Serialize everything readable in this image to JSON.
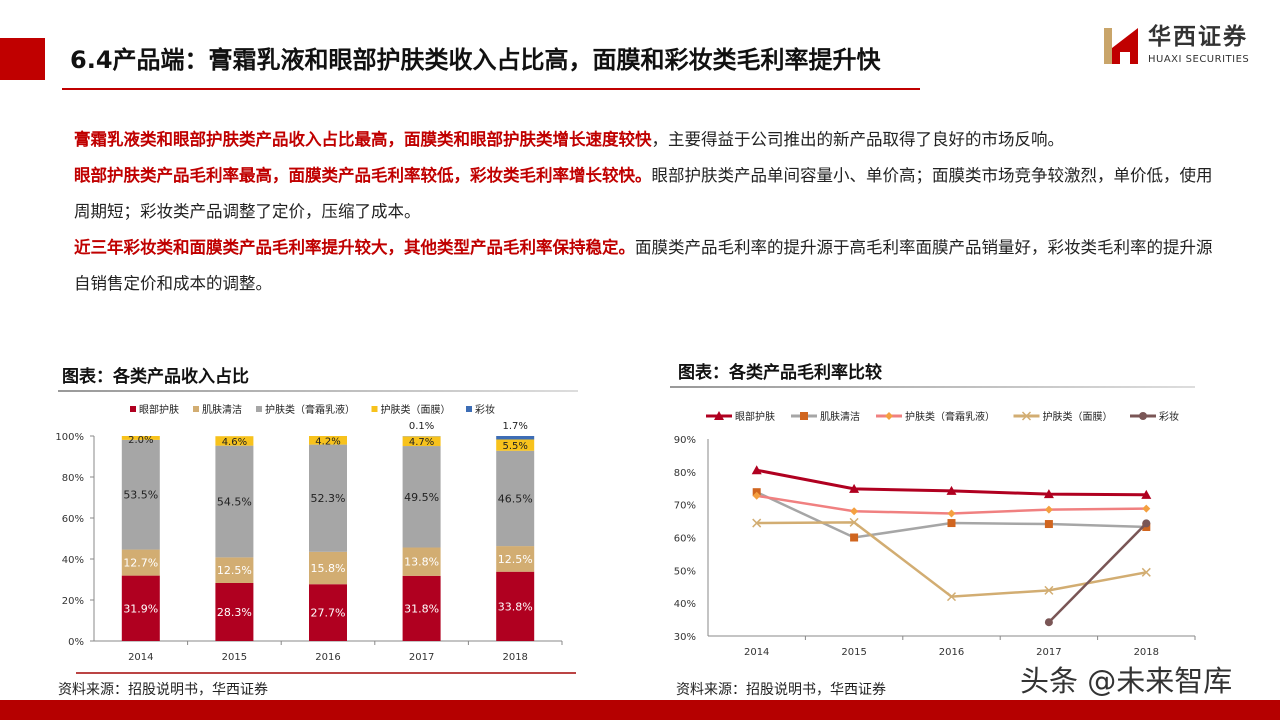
{
  "header": {
    "title": "6.4产品端：膏霜乳液和眼部护肤类收入占比高，面膜和彩妆类毛利率提升快",
    "logo_cn": "华西证券",
    "logo_en": "HUAXI SECURITIES",
    "accent": "#c00000"
  },
  "paragraphs": [
    {
      "bold": "膏霜乳液类和眼部护肤类产品收入占比最高，面膜类和眼部护肤类增长速度较快",
      "text": "，主要得益于公司推出的新产品取得了良好的市场反响。"
    },
    {
      "bold": "眼部护肤类产品毛利率最高，面膜类产品毛利率较低，彩妆类毛利率增长较快。",
      "text": "眼部护肤类产品单间容量小、单价高；面膜类市场竞争较激烈，单价低，使用周期短；彩妆类产品调整了定价，压缩了成本。"
    },
    {
      "bold": "近三年彩妆类和面膜类产品毛利率提升较大，其他类型产品毛利率保持稳定。",
      "text": "面膜类产品毛利率的提升源于高毛利率面膜产品销量好，彩妆类毛利率的提升源自销售定价和成本的调整。"
    }
  ],
  "chart_data": [
    {
      "type": "bar",
      "stacked": true,
      "title": "图表：各类产品收入占比",
      "categories": [
        "2014",
        "2015",
        "2016",
        "2017",
        "2018"
      ],
      "yticks": [
        "0%",
        "20%",
        "40%",
        "60%",
        "80%",
        "100%"
      ],
      "ylim": [
        0,
        100
      ],
      "legend": "top",
      "series": [
        {
          "name": "眼部护肤",
          "color": "#b00020",
          "values": [
            31.9,
            28.3,
            27.7,
            31.8,
            33.8
          ],
          "labels": [
            "31.9%",
            "28.3%",
            "27.7%",
            "31.8%",
            "33.8%"
          ]
        },
        {
          "name": "肌肤清洁",
          "color": "#d2ad72",
          "values": [
            12.7,
            12.5,
            15.8,
            13.8,
            12.5
          ],
          "labels": [
            "12.7%",
            "12.5%",
            "15.8%",
            "13.8%",
            "12.5%"
          ]
        },
        {
          "name": "护肤类（膏霜乳液）",
          "color": "#a6a6a6",
          "values": [
            53.5,
            54.5,
            52.3,
            49.5,
            46.5
          ],
          "labels": [
            "53.5%",
            "54.5%",
            "52.3%",
            "49.5%",
            "46.5%"
          ]
        },
        {
          "name": "护肤类（面膜）",
          "color": "#f7c21c",
          "values": [
            2.0,
            4.6,
            4.2,
            4.7,
            5.5
          ],
          "labels": [
            "2.0%",
            "4.6%",
            "4.2%",
            "4.7%",
            "5.5%"
          ]
        },
        {
          "name": "彩妆",
          "color": "#3d6db5",
          "values": [
            0,
            0,
            0,
            0.1,
            1.7
          ],
          "labels": [
            "",
            "",
            "",
            "0.1%",
            "1.7%"
          ]
        }
      ],
      "source": "资料来源：招股说明书，华西证券"
    },
    {
      "type": "line",
      "title": "图表：各类产品毛利率比较",
      "categories": [
        "2014",
        "2015",
        "2016",
        "2017",
        "2018"
      ],
      "yticks": [
        "30%",
        "40%",
        "50%",
        "60%",
        "70%",
        "80%",
        "90%"
      ],
      "ylim": [
        30,
        90
      ],
      "legend": "top",
      "series": [
        {
          "name": "眼部护肤",
          "color": "#b00020",
          "marker": "triangle",
          "values": [
            80.5,
            74.8,
            74.2,
            73.2,
            73.0
          ]
        },
        {
          "name": "肌肤清洁",
          "color": "#a6a6a6",
          "markerColor": "#d0651f",
          "marker": "square",
          "values": [
            73.8,
            60.0,
            64.4,
            64.1,
            63.2
          ]
        },
        {
          "name": "护肤类（膏霜乳液）",
          "color": "#f08080",
          "markerColor": "#f4a040",
          "marker": "diamond",
          "values": [
            72.7,
            68.0,
            67.3,
            68.5,
            68.8
          ]
        },
        {
          "name": "护肤类（面膜）",
          "color": "#d2ad72",
          "marker": "x",
          "values": [
            64.4,
            64.6,
            42.0,
            43.9,
            49.4
          ]
        },
        {
          "name": "彩妆",
          "color": "#7a5656",
          "marker": "circle",
          "values": [
            null,
            null,
            null,
            34.2,
            64.3
          ]
        }
      ],
      "source": "资料来源：招股说明书，华西证券"
    }
  ],
  "watermark": "头条 @未来智库"
}
